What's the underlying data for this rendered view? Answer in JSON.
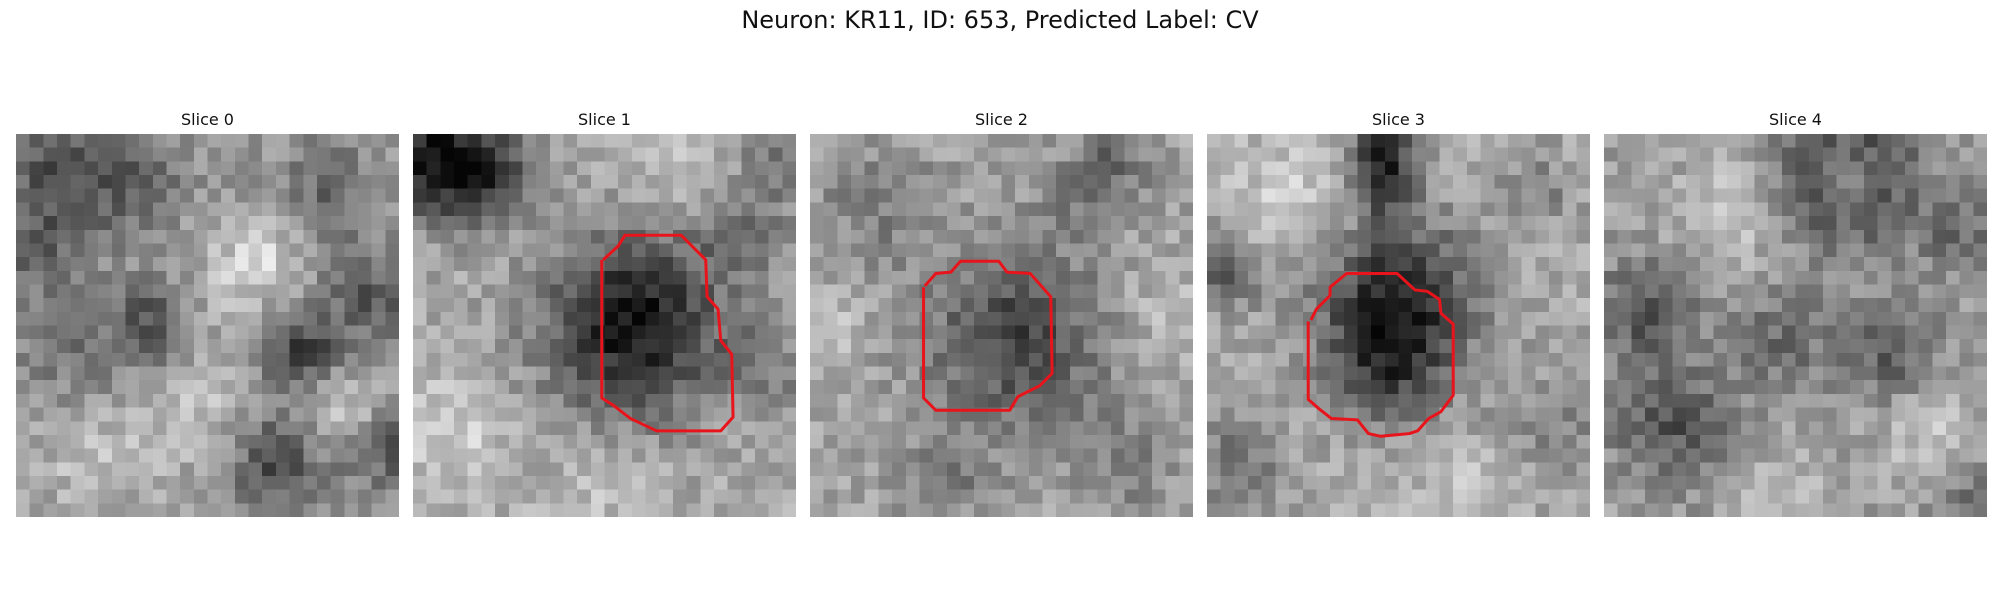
{
  "figure": {
    "title": "Neuron: KR11, ID: 653, Predicted Label: CV",
    "contour_color": "#e8141b"
  },
  "slices": [
    {
      "title": "Slice 0",
      "contour": []
    },
    {
      "title": "Slice 1",
      "contour": [
        [
          13.9,
          9.2
        ],
        [
          15,
          8.2
        ],
        [
          15.5,
          7.4
        ],
        [
          19.6,
          7.4
        ],
        [
          21.4,
          9.2
        ],
        [
          21.5,
          11.9
        ],
        [
          22.3,
          12.8
        ],
        [
          22.5,
          15.1
        ],
        [
          23.3,
          16.1
        ],
        [
          23.4,
          20.7
        ],
        [
          22.5,
          21.7
        ],
        [
          17.8,
          21.7
        ],
        [
          15.9,
          20.8
        ],
        [
          14.6,
          19.8
        ],
        [
          13.8,
          19.3
        ],
        [
          13.8,
          9.2
        ]
      ]
    },
    {
      "title": "Slice 2",
      "contour": [
        [
          8.4,
          11.1
        ],
        [
          9.2,
          10.2
        ],
        [
          10.3,
          10.1
        ],
        [
          11,
          9.3
        ],
        [
          13.8,
          9.3
        ],
        [
          14.4,
          10.1
        ],
        [
          16.1,
          10.2
        ],
        [
          16.9,
          11.1
        ],
        [
          17.6,
          11.9
        ],
        [
          17.7,
          17.5
        ],
        [
          16.8,
          18.4
        ],
        [
          15.2,
          19.2
        ],
        [
          14.6,
          20.2
        ],
        [
          9.2,
          20.2
        ],
        [
          8.3,
          19.3
        ],
        [
          8.3,
          11.2
        ]
      ]
    },
    {
      "title": "Slice 3",
      "contour": [
        [
          7.6,
          13.6
        ],
        [
          8,
          12.8
        ],
        [
          9,
          11.8
        ],
        [
          9,
          11.2
        ],
        [
          10.2,
          10.2
        ],
        [
          13.9,
          10.2
        ],
        [
          15.2,
          11.4
        ],
        [
          16.1,
          11.5
        ],
        [
          17,
          12.1
        ],
        [
          17.1,
          13.1
        ],
        [
          18,
          13.9
        ],
        [
          18,
          19.1
        ],
        [
          17.1,
          20.3
        ],
        [
          16.2,
          20.8
        ],
        [
          15.4,
          21.7
        ],
        [
          14.8,
          21.9
        ],
        [
          12.7,
          22.1
        ],
        [
          11.8,
          21.9
        ],
        [
          11,
          20.9
        ],
        [
          9.1,
          20.8
        ],
        [
          8.2,
          20.1
        ],
        [
          7.4,
          19.4
        ],
        [
          7.4,
          13.7
        ]
      ]
    },
    {
      "title": "Slice 4",
      "contour": []
    }
  ]
}
